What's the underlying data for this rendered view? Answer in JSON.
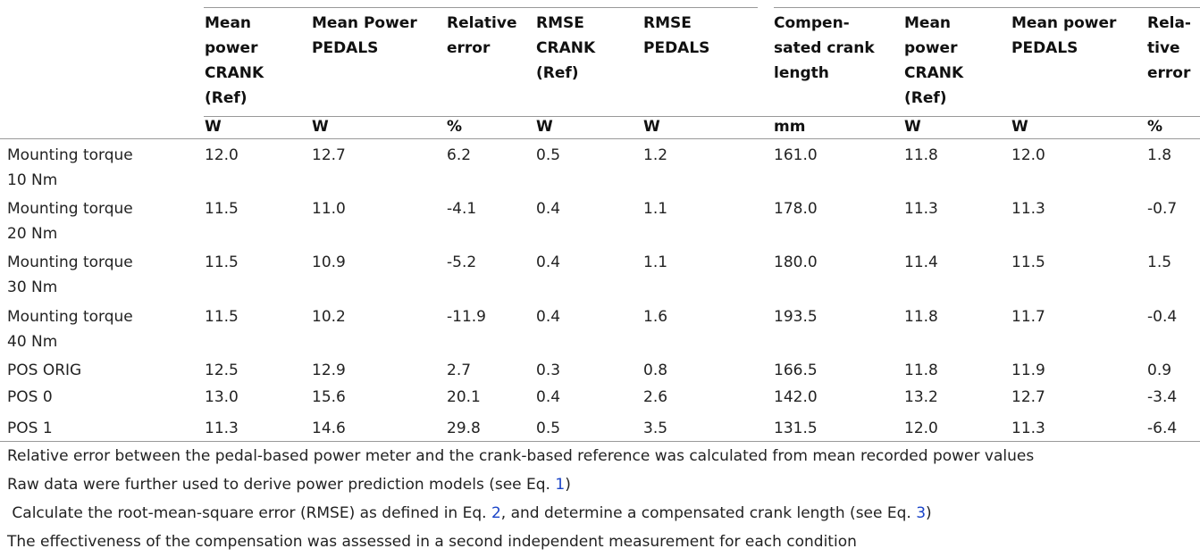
{
  "header": {
    "columns": [
      {
        "lines": [
          "Mean",
          "power",
          "CRANK",
          "(Ref)"
        ],
        "unit": "W"
      },
      {
        "lines": [
          "Mean Power",
          "PEDALS"
        ],
        "unit": "W"
      },
      {
        "lines": [
          "Relative",
          "error"
        ],
        "unit": "%"
      },
      {
        "lines": [
          "RMSE",
          "CRANK",
          "(Ref)"
        ],
        "unit": "W"
      },
      {
        "lines": [
          "RMSE",
          "PEDALS"
        ],
        "unit": "W"
      },
      {
        "lines": [
          "Compen-",
          "sated crank",
          "length"
        ],
        "unit": "mm"
      },
      {
        "lines": [
          "Mean",
          "power",
          "CRANK",
          "(Ref)"
        ],
        "unit": "W"
      },
      {
        "lines": [
          "Mean power",
          "PEDALS"
        ],
        "unit": "W"
      },
      {
        "lines": [
          "Rela-",
          "tive",
          "error"
        ],
        "unit": "%"
      }
    ]
  },
  "table": {
    "rows": [
      {
        "label": [
          "Mounting torque",
          "10 Nm"
        ],
        "cells": [
          "12.0",
          "12.7",
          "6.2",
          "0.5",
          "1.2",
          "161.0",
          "11.8",
          "12.0",
          "1.8"
        ]
      },
      {
        "label": [
          "Mounting torque",
          "20 Nm"
        ],
        "cells": [
          "11.5",
          "11.0",
          "-4.1",
          "0.4",
          "1.1",
          "178.0",
          "11.3",
          "11.3",
          "-0.7"
        ]
      },
      {
        "label": [
          "Mounting torque",
          "30 Nm"
        ],
        "cells": [
          "11.5",
          "10.9",
          "-5.2",
          "0.4",
          "1.1",
          "180.0",
          "11.4",
          "11.5",
          "1.5"
        ]
      },
      {
        "label": [
          "Mounting torque",
          "40 Nm"
        ],
        "cells": [
          "11.5",
          "10.2",
          "-11.9",
          "0.4",
          "1.6",
          "193.5",
          "11.8",
          "11.7",
          "-0.4"
        ]
      },
      {
        "label": [
          "POS ORIG"
        ],
        "cells": [
          "12.5",
          "12.9",
          "2.7",
          "0.3",
          "0.8",
          "166.5",
          "11.8",
          "11.9",
          "0.9"
        ]
      },
      {
        "label": [
          "POS 0"
        ],
        "cells": [
          "13.0",
          "15.6",
          "20.1",
          "0.4",
          "2.6",
          "142.0",
          "13.2",
          "12.7",
          "-3.4"
        ]
      },
      {
        "label": [
          "POS 1"
        ],
        "cells": [
          "11.3",
          "14.6",
          "29.8",
          "0.5",
          "3.5",
          "131.5",
          "12.0",
          "11.3",
          "-6.4"
        ]
      }
    ]
  },
  "footnotes": [
    [
      "Relative error between the pedal-based power meter and the crank-based reference was calculated from mean recorded power values"
    ],
    [
      "Raw data were further used to derive power prediction models (see Eq. ",
      "1",
      ")"
    ],
    [
      " Calculate the root-mean-square error (RMSE) as defined in Eq. ",
      "2",
      ", and determine a compensated crank length (see Eq. ",
      "3",
      ")"
    ],
    [
      "The effectiveness of the compensation was assessed in a second independent measurement for each condition"
    ]
  ]
}
